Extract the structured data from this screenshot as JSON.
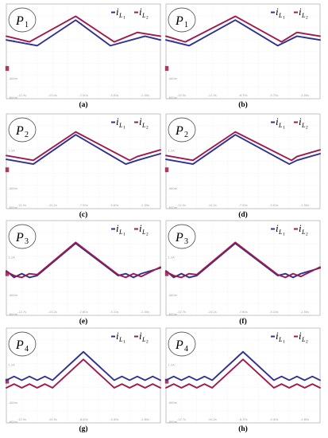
{
  "colors": {
    "iL1": "#2e3192",
    "iL2": "#a0184e",
    "grid": "#cfcfcf",
    "frame": "#9c9c9c"
  },
  "legend": {
    "sym": "i",
    "sub": "L",
    "n1": "1",
    "n2": "2"
  },
  "panels": [
    {
      "caption": "(a)",
      "phase_main": "P",
      "phase_sub": "1",
      "yticks": [
        "",
        "1.2A",
        "",
        "-400m",
        "-600m"
      ],
      "xticks": [
        "-12.5s",
        "-10.0s",
        "-7.50s",
        "-5.00s",
        "-2.50s"
      ]
    },
    {
      "caption": "(b)",
      "phase_main": "P",
      "phase_sub": "1",
      "yticks": [
        "",
        "1.2A",
        "",
        "-400m",
        "-600m"
      ],
      "xticks": [
        "-15.5s",
        "-11.5s",
        "-8.75s",
        "-5.75s",
        "-3.00s"
      ]
    },
    {
      "caption": "(c)",
      "phase_main": "P",
      "phase_sub": "2",
      "yticks": [
        "",
        "1.2A",
        "",
        "-400m",
        "-600m"
      ],
      "xticks": [
        "-12.5s",
        "-10.2s",
        "-7.50s",
        "-5.00s",
        "-2.50s"
      ]
    },
    {
      "caption": "(d)",
      "phase_main": "P",
      "phase_sub": "2",
      "yticks": [
        "",
        "1.2A",
        "",
        "-400m",
        "-600m"
      ],
      "xticks": [
        "-12.5s",
        "-10.2s",
        "-7.50s",
        "-5.00s",
        "-2.50s"
      ]
    },
    {
      "caption": "(e)",
      "phase_main": "P",
      "phase_sub": "3",
      "yticks": [
        "",
        "1.2A",
        "",
        "-400m",
        "-600m"
      ],
      "xticks": [
        "-12.7s",
        "-10.2s",
        "-7.80s",
        "-5.10s",
        "-2.50s"
      ]
    },
    {
      "caption": "(f)",
      "phase_main": "P",
      "phase_sub": "3",
      "yticks": [
        "",
        "1.2A",
        "",
        "-400m",
        "-600m"
      ],
      "xticks": [
        "-12.7s",
        "-10.2s",
        "-7.80s",
        "-5.10s",
        "-2.50s"
      ]
    },
    {
      "caption": "(g)",
      "phase_main": "P",
      "phase_sub": "4",
      "yticks": [
        "",
        "1.2A",
        "",
        "-400m",
        "-600m"
      ],
      "xticks": [
        "-12.5s",
        "-10.5s",
        "-8.00s",
        "-5.40s",
        "-2.60s"
      ]
    },
    {
      "caption": "(h)",
      "phase_main": "P",
      "phase_sub": "4",
      "yticks": [
        "",
        "1.2A",
        "",
        "-400m",
        "-600m"
      ],
      "xticks": [
        "-12.7s",
        "-10.2s",
        "-8.70s",
        "-5.40s",
        "-2.60s"
      ]
    }
  ],
  "chart_data": [
    {
      "type": "line",
      "panel": "(a)",
      "title": "",
      "xlabel": "",
      "ylabel": "",
      "ylim": [
        -5,
        5
      ],
      "grid": true,
      "legend": "top-right",
      "series": [
        {
          "name": "i_L1",
          "x": [
            0,
            4,
            9,
            13.5,
            18,
            20
          ],
          "y": [
            1.2,
            0.6,
            3.3,
            0.6,
            1.6,
            1.2
          ]
        },
        {
          "name": "i_L2",
          "x": [
            0,
            3,
            9,
            14,
            17,
            20
          ],
          "y": [
            1.6,
            1.0,
            3.7,
            1.0,
            2.0,
            1.6
          ]
        }
      ]
    },
    {
      "type": "line",
      "panel": "(b)",
      "title": "",
      "xlabel": "",
      "ylabel": "",
      "ylim": [
        -5,
        5
      ],
      "grid": true,
      "legend": "top-right",
      "series": [
        {
          "name": "i_L1",
          "x": [
            0,
            3,
            9,
            14.5,
            17,
            20
          ],
          "y": [
            1.2,
            0.6,
            3.3,
            0.6,
            1.6,
            1.2
          ]
        },
        {
          "name": "i_L2",
          "x": [
            0,
            2.5,
            9,
            15,
            17,
            20
          ],
          "y": [
            1.6,
            1.0,
            3.7,
            1.0,
            2.0,
            1.6
          ]
        }
      ]
    },
    {
      "type": "line",
      "panel": "(c)",
      "title": "",
      "xlabel": "",
      "ylabel": "",
      "ylim": [
        -5,
        5
      ],
      "grid": true,
      "legend": "top-right",
      "series": [
        {
          "name": "i_L1",
          "x": [
            0,
            3.5,
            9,
            15.5,
            17,
            20
          ],
          "y": [
            0.2,
            -0.3,
            2.8,
            -0.3,
            0.1,
            0.8
          ]
        },
        {
          "name": "i_L2",
          "x": [
            0,
            3.5,
            9,
            16,
            17,
            20
          ],
          "y": [
            0.6,
            0.1,
            3.1,
            0.1,
            0.5,
            1.2
          ]
        }
      ]
    },
    {
      "type": "line",
      "panel": "(d)",
      "title": "",
      "xlabel": "",
      "ylabel": "",
      "ylim": [
        -5,
        5
      ],
      "grid": true,
      "legend": "top-right",
      "series": [
        {
          "name": "i_L1",
          "x": [
            0,
            3.5,
            9,
            16,
            17,
            20
          ],
          "y": [
            0.2,
            -0.3,
            2.8,
            -0.3,
            0.1,
            0.8
          ]
        },
        {
          "name": "i_L2",
          "x": [
            0,
            3.5,
            9,
            16.3,
            17,
            20
          ],
          "y": [
            0.6,
            0.1,
            3.1,
            0.1,
            0.5,
            1.2
          ]
        }
      ]
    },
    {
      "type": "line",
      "panel": "(e)",
      "title": "",
      "xlabel": "",
      "ylabel": "",
      "ylim": [
        -5,
        5
      ],
      "grid": true,
      "legend": "top-right",
      "series": [
        {
          "name": "i_L1",
          "x": [
            0,
            1,
            2,
            3,
            4,
            9,
            14.5,
            15.5,
            16.5,
            17.5,
            20
          ],
          "y": [
            -0.3,
            -1.0,
            -0.6,
            -1.0,
            -0.8,
            2.6,
            -0.8,
            -0.6,
            -1.0,
            -0.6,
            0.0
          ]
        },
        {
          "name": "i_L2",
          "x": [
            0,
            1,
            2,
            3,
            4,
            9,
            14.5,
            15.5,
            16.5,
            17.5,
            20
          ],
          "y": [
            -0.4,
            -0.8,
            -1.0,
            -0.6,
            -0.7,
            2.7,
            -0.7,
            -1.0,
            -0.6,
            -0.9,
            0.1
          ]
        }
      ]
    },
    {
      "type": "line",
      "panel": "(f)",
      "title": "",
      "xlabel": "",
      "ylabel": "",
      "ylim": [
        -5,
        5
      ],
      "grid": true,
      "legend": "top-right",
      "series": [
        {
          "name": "i_L1",
          "x": [
            0,
            1,
            2,
            3,
            4,
            9,
            14.5,
            15.5,
            16.5,
            17.5,
            20
          ],
          "y": [
            -0.3,
            -1.0,
            -0.6,
            -1.0,
            -0.8,
            2.6,
            -0.8,
            -0.6,
            -1.0,
            -0.6,
            0.0
          ]
        },
        {
          "name": "i_L2",
          "x": [
            0,
            1,
            2,
            3,
            4,
            9,
            14.5,
            15.5,
            16.5,
            17.5,
            20
          ],
          "y": [
            -0.4,
            -0.8,
            -1.0,
            -0.6,
            -0.7,
            2.7,
            -0.7,
            -1.0,
            -0.6,
            -0.9,
            0.1
          ]
        }
      ]
    },
    {
      "type": "line",
      "panel": "(g)",
      "title": "",
      "xlabel": "",
      "ylabel": "",
      "ylim": [
        -5,
        5
      ],
      "grid": true,
      "legend": "top-right",
      "series": [
        {
          "name": "i_L1",
          "x": [
            0,
            1,
            2,
            3,
            4,
            5,
            6,
            10,
            14,
            15,
            16,
            17,
            18,
            19,
            20
          ],
          "y": [
            -0.5,
            -0.1,
            -0.5,
            -0.1,
            -0.5,
            -0.1,
            -0.5,
            2.5,
            -0.5,
            -0.1,
            -0.5,
            -0.1,
            -0.5,
            -0.1,
            -0.5
          ]
        },
        {
          "name": "i_L2",
          "x": [
            0,
            1,
            2,
            3,
            4,
            5,
            6,
            10,
            14,
            15,
            16,
            17,
            18,
            19,
            20
          ],
          "y": [
            -1.3,
            -0.9,
            -1.3,
            -0.9,
            -1.3,
            -0.9,
            -1.3,
            1.7,
            -1.3,
            -0.9,
            -1.3,
            -0.9,
            -1.3,
            -0.9,
            -1.3
          ]
        }
      ]
    },
    {
      "type": "line",
      "panel": "(h)",
      "title": "",
      "xlabel": "",
      "ylabel": "",
      "ylim": [
        -5,
        5
      ],
      "grid": true,
      "legend": "top-right",
      "series": [
        {
          "name": "i_L1",
          "x": [
            0,
            1,
            2,
            3,
            4,
            5,
            6,
            10,
            14,
            15,
            16,
            17,
            18,
            19,
            20
          ],
          "y": [
            -0.5,
            -0.1,
            -0.5,
            -0.1,
            -0.5,
            -0.1,
            -0.5,
            2.5,
            -0.5,
            -0.1,
            -0.5,
            -0.1,
            -0.5,
            -0.1,
            -0.5
          ]
        },
        {
          "name": "i_L2",
          "x": [
            0,
            1,
            2,
            3,
            4,
            5,
            6,
            10,
            14,
            15,
            16,
            17,
            18,
            19,
            20
          ],
          "y": [
            -1.3,
            -0.9,
            -1.3,
            -0.9,
            -1.3,
            -0.9,
            -1.3,
            1.7,
            -1.3,
            -0.9,
            -1.3,
            -0.9,
            -1.3,
            -0.9,
            -1.3
          ]
        }
      ]
    }
  ]
}
